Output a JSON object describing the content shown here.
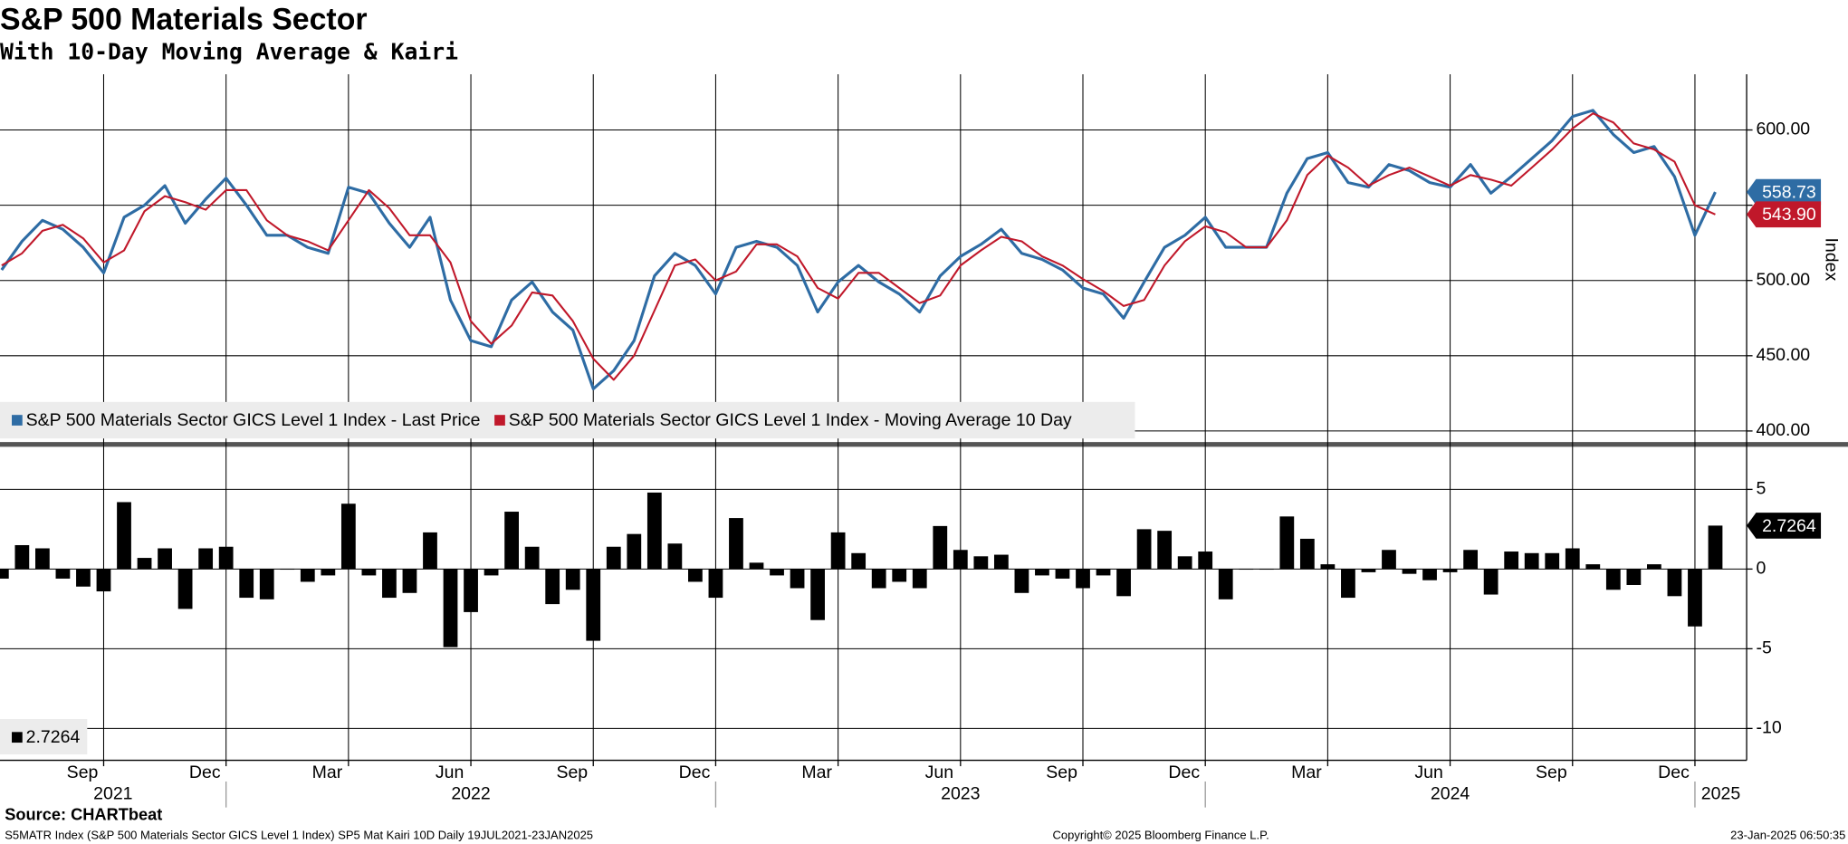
{
  "chart_data": [
    {
      "type": "line",
      "title": "S&P 500 Materials Sector",
      "subtitle": "With 10-Day Moving Average & Kairi",
      "ylabel": "Index",
      "ylim": [
        395,
        637
      ],
      "yticks": [
        {
          "value": 400,
          "label": "400.00"
        },
        {
          "value": 450,
          "label": "450.00"
        },
        {
          "value": 500,
          "label": "500.00"
        },
        {
          "value": 550,
          "label": "550.00"
        },
        {
          "value": 600,
          "label": "600.00"
        }
      ],
      "grid": true,
      "series": [
        {
          "name": "S&P 500 Materials Sector GICS Level 1 Index - Last Price",
          "color": "#2e6ca4",
          "values": [
            507,
            526,
            540,
            534,
            522,
            505,
            542,
            550,
            563,
            538,
            554,
            568,
            550,
            530,
            530,
            522,
            518,
            562,
            558,
            538,
            522,
            542,
            487,
            460,
            456,
            487,
            499,
            479,
            467,
            428,
            440,
            460,
            503,
            518,
            510,
            491,
            522,
            526,
            522,
            510,
            479,
            499,
            510,
            499,
            491,
            479,
            503,
            516,
            524,
            534,
            518,
            514,
            507,
            495,
            491,
            475,
            499,
            522,
            530,
            542,
            522,
            522,
            522,
            558,
            581,
            585,
            565,
            562,
            577,
            573,
            565,
            562,
            577,
            558,
            569,
            581,
            593,
            609,
            613,
            597,
            585,
            589,
            569,
            530,
            558.73
          ]
        },
        {
          "name": "S&P 500 Materials Sector GICS Level 1 Index - Moving Average 10 Day",
          "color": "#c0182a",
          "values": [
            510,
            518,
            533,
            537,
            528,
            512,
            520,
            546,
            556,
            552,
            547,
            560,
            560,
            540,
            530,
            526,
            520,
            540,
            560,
            548,
            530,
            530,
            512,
            473,
            458,
            470,
            492,
            490,
            473,
            448,
            434,
            450,
            480,
            510,
            514,
            500,
            506,
            524,
            524,
            516,
            495,
            488,
            505,
            505,
            495,
            485,
            490,
            510,
            520,
            529,
            526,
            516,
            510,
            501,
            493,
            483,
            487,
            510,
            526,
            536,
            532,
            522,
            522,
            540,
            570,
            583,
            575,
            563,
            570,
            575,
            569,
            563,
            570,
            567,
            563,
            575,
            587,
            601,
            611,
            605,
            591,
            587,
            579,
            550,
            543.9
          ],
          "last_label": "543.90"
        }
      ]
    },
    {
      "type": "bar",
      "ylim": [
        -12,
        7.6
      ],
      "yticks": [
        5,
        0,
        -5,
        -10
      ],
      "grid": true,
      "categories": [
        null,
        null,
        null,
        null,
        null,
        "Sep",
        null,
        null,
        null,
        null,
        null,
        "Dec",
        null,
        null,
        null,
        null,
        null,
        "Mar",
        null,
        null,
        null,
        null,
        null,
        "Jun",
        null,
        null,
        null,
        null,
        null,
        "Sep",
        null,
        null,
        null,
        null,
        null,
        "Dec",
        null,
        null,
        null,
        null,
        null,
        "Mar",
        null,
        null,
        null,
        null,
        null,
        "Jun",
        null,
        null,
        null,
        null,
        null,
        "Sep",
        null,
        null,
        null,
        null,
        null,
        "Dec",
        null,
        null,
        null,
        null,
        null,
        "Mar",
        null,
        null,
        null,
        null,
        null,
        "Jun",
        null,
        null,
        null,
        null,
        null,
        "Sep",
        null,
        null,
        null,
        null,
        null,
        "Dec",
        null
      ],
      "year_labels": [
        "2021",
        "2022",
        "2023",
        "2024",
        "2025"
      ],
      "series": [
        {
          "color": "#000000",
          "values": [
            -0.6,
            1.5,
            1.3,
            -0.6,
            -1.1,
            -1.4,
            4.2,
            0.7,
            1.3,
            -2.5,
            1.3,
            1.4,
            -1.8,
            -1.9,
            0,
            -0.8,
            -0.4,
            4.1,
            -0.4,
            -1.8,
            -1.5,
            2.3,
            -4.9,
            -2.7,
            -0.4,
            3.6,
            1.4,
            -2.2,
            -1.3,
            -4.5,
            1.4,
            2.2,
            4.8,
            1.6,
            -0.8,
            -1.8,
            3.2,
            0.4,
            -0.4,
            -1.2,
            -3.2,
            2.3,
            1.0,
            -1.2,
            -0.8,
            -1.2,
            2.7,
            1.2,
            0.8,
            0.9,
            -1.5,
            -0.4,
            -0.6,
            -1.2,
            -0.4,
            -1.7,
            2.5,
            2.4,
            0.8,
            1.1,
            -1.9,
            0,
            0,
            3.3,
            1.9,
            0.3,
            -1.8,
            -0.2,
            1.2,
            -0.3,
            -0.7,
            -0.2,
            1.2,
            -1.6,
            1.1,
            1.0,
            1.0,
            1.3,
            0.3,
            -1.3,
            -1.0,
            0.3,
            -1.7,
            -3.6,
            2.7264
          ]
        }
      ]
    }
  ],
  "source": "Source: CHARTbeat",
  "footer": {
    "left": "S5MATR Index (S&P 500 Materials Sector GICS Level 1 Index) SP5 Mat Kairi 10D  Daily 19JUL2021-23JAN2025",
    "center": "Copyright© 2025 Bloomberg Finance L.P.",
    "right": "23-Jan-2025 06:50:35"
  }
}
